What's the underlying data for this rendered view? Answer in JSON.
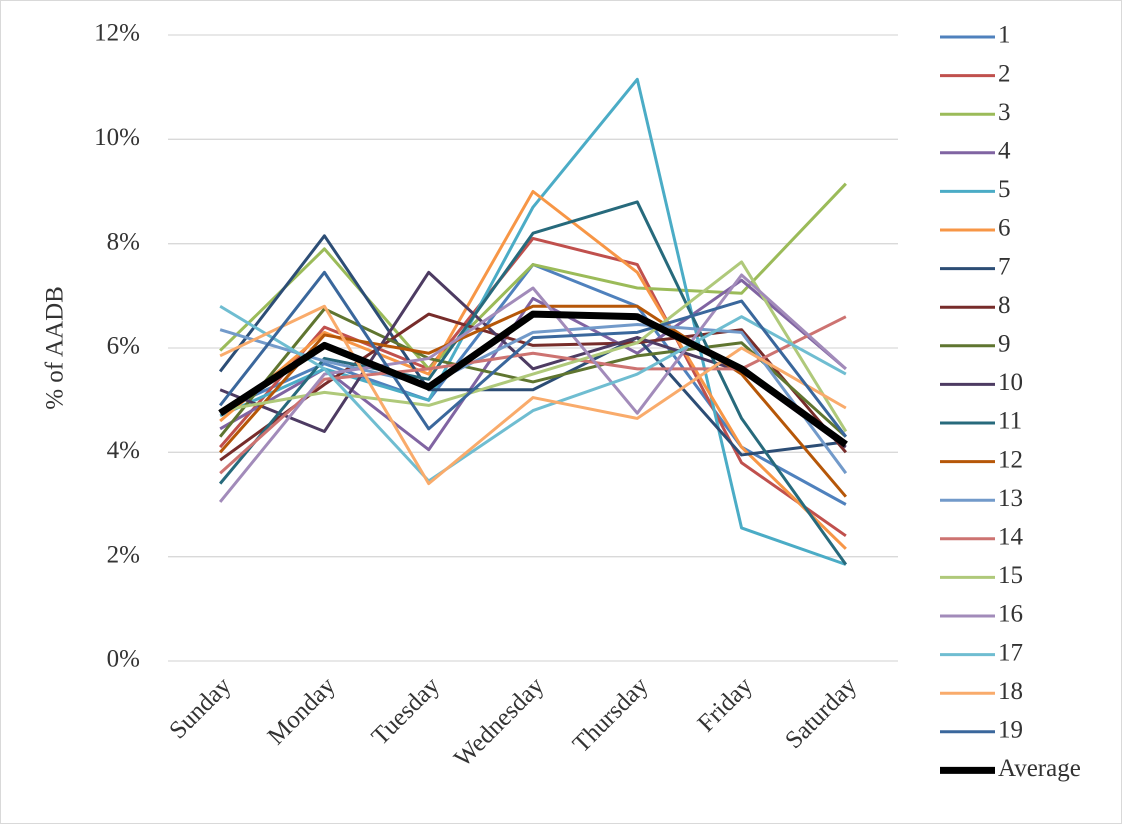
{
  "chart_data": {
    "type": "line",
    "y_axis_label": "% of AADB",
    "categories": [
      "Sunday",
      "Monday",
      "Tuesday",
      "Wednesday",
      "Thursday",
      "Friday",
      "Saturday"
    ],
    "ylim": [
      0,
      12
    ],
    "yticks": [
      {
        "value": 0,
        "label": "0%"
      },
      {
        "value": 2,
        "label": "2%"
      },
      {
        "value": 4,
        "label": "4%"
      },
      {
        "value": 6,
        "label": "6%"
      },
      {
        "value": 8,
        "label": "8%"
      },
      {
        "value": 10,
        "label": "10%"
      },
      {
        "value": 12,
        "label": "12%"
      }
    ],
    "grid": true,
    "legend": "right",
    "series": [
      {
        "name": "1",
        "color": "#4f81bd",
        "values": [
          4.8,
          5.7,
          5.0,
          7.6,
          6.8,
          4.1,
          3.0
        ]
      },
      {
        "name": "2",
        "color": "#c0504d",
        "values": [
          4.1,
          6.4,
          5.6,
          8.1,
          7.6,
          3.8,
          2.4
        ]
      },
      {
        "name": "3",
        "color": "#9bbb59",
        "values": [
          5.95,
          7.9,
          5.6,
          7.6,
          7.15,
          7.05,
          9.15
        ]
      },
      {
        "name": "4",
        "color": "#8064a2",
        "values": [
          4.45,
          5.6,
          4.05,
          6.95,
          5.9,
          7.3,
          5.6
        ]
      },
      {
        "name": "5",
        "color": "#4bacc6",
        "values": [
          4.7,
          5.6,
          5.0,
          8.7,
          11.15,
          2.55,
          1.85
        ]
      },
      {
        "name": "6",
        "color": "#f79646",
        "values": [
          4.6,
          6.3,
          5.5,
          9.0,
          7.45,
          4.1,
          2.15
        ]
      },
      {
        "name": "7",
        "color": "#2c4d75",
        "values": [
          5.55,
          8.15,
          5.2,
          5.2,
          6.2,
          3.95,
          4.2
        ]
      },
      {
        "name": "8",
        "color": "#772c2a",
        "values": [
          3.85,
          5.3,
          6.65,
          6.05,
          6.1,
          6.35,
          4.0
        ]
      },
      {
        "name": "9",
        "color": "#5f7530",
        "values": [
          4.3,
          6.75,
          5.8,
          5.35,
          5.85,
          6.1,
          4.3
        ]
      },
      {
        "name": "10",
        "color": "#4d3b62",
        "values": [
          5.2,
          4.4,
          7.45,
          5.6,
          6.2,
          5.55,
          4.1
        ]
      },
      {
        "name": "11",
        "color": "#276a7c",
        "values": [
          3.4,
          5.8,
          5.4,
          8.2,
          8.8,
          4.65,
          1.85
        ]
      },
      {
        "name": "12",
        "color": "#b65708",
        "values": [
          4.0,
          6.25,
          5.9,
          6.8,
          6.8,
          5.5,
          3.15
        ]
      },
      {
        "name": "13",
        "color": "#729aca",
        "values": [
          6.35,
          5.75,
          5.3,
          6.3,
          6.45,
          6.3,
          3.6
        ]
      },
      {
        "name": "14",
        "color": "#cd7371",
        "values": [
          3.6,
          5.4,
          5.6,
          5.9,
          5.6,
          5.6,
          6.6
        ]
      },
      {
        "name": "15",
        "color": "#afc97a",
        "values": [
          4.8,
          5.15,
          4.9,
          5.5,
          6.1,
          7.65,
          4.4
        ]
      },
      {
        "name": "16",
        "color": "#a28bba",
        "values": [
          3.05,
          5.5,
          5.8,
          7.15,
          4.75,
          7.4,
          5.6
        ]
      },
      {
        "name": "17",
        "color": "#6fbdd1",
        "values": [
          6.8,
          5.6,
          3.45,
          4.8,
          5.5,
          6.6,
          5.5
        ]
      },
      {
        "name": "18",
        "color": "#f9ab6b",
        "values": [
          5.85,
          6.8,
          3.4,
          5.05,
          4.65,
          6.0,
          4.85
        ]
      },
      {
        "name": "19",
        "color": "#3a679c",
        "values": [
          4.9,
          7.45,
          4.45,
          6.2,
          6.3,
          6.9,
          4.3
        ]
      },
      {
        "name": "Average",
        "color": "#000000",
        "values": [
          4.75,
          6.05,
          5.25,
          6.65,
          6.6,
          5.6,
          4.15
        ]
      }
    ]
  }
}
